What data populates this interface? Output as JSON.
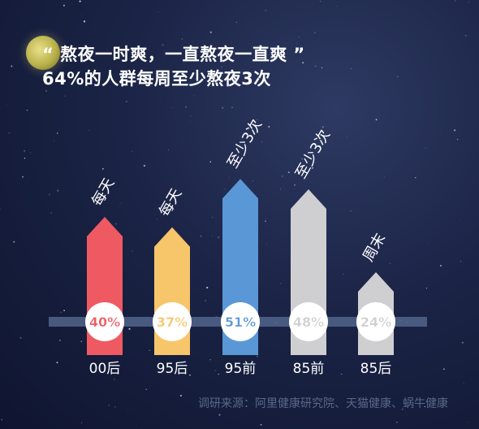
{
  "header": {
    "title_line1": "“ 熬夜一时爽，一直熬夜一直爽 ”",
    "title_line2": "64%的人群每周至少熬夜3次"
  },
  "chart_data": {
    "type": "bar",
    "categories": [
      "00后",
      "95后",
      "95前",
      "85前",
      "85后"
    ],
    "values": [
      40,
      37,
      51,
      48,
      24
    ],
    "value_labels": [
      "40%",
      "37%",
      "51%",
      "48%",
      "24%"
    ],
    "frequency_labels": [
      "每天",
      "每天",
      "至少3次",
      "至少3次",
      "周末"
    ],
    "colors": [
      "#ef5a62",
      "#f7c56a",
      "#5a97d6",
      "#cfcfd2",
      "#cfcfd2"
    ]
  },
  "footer": {
    "source": "调研来源：阿里健康研究院、天猫健康、蜗牛健康"
  }
}
